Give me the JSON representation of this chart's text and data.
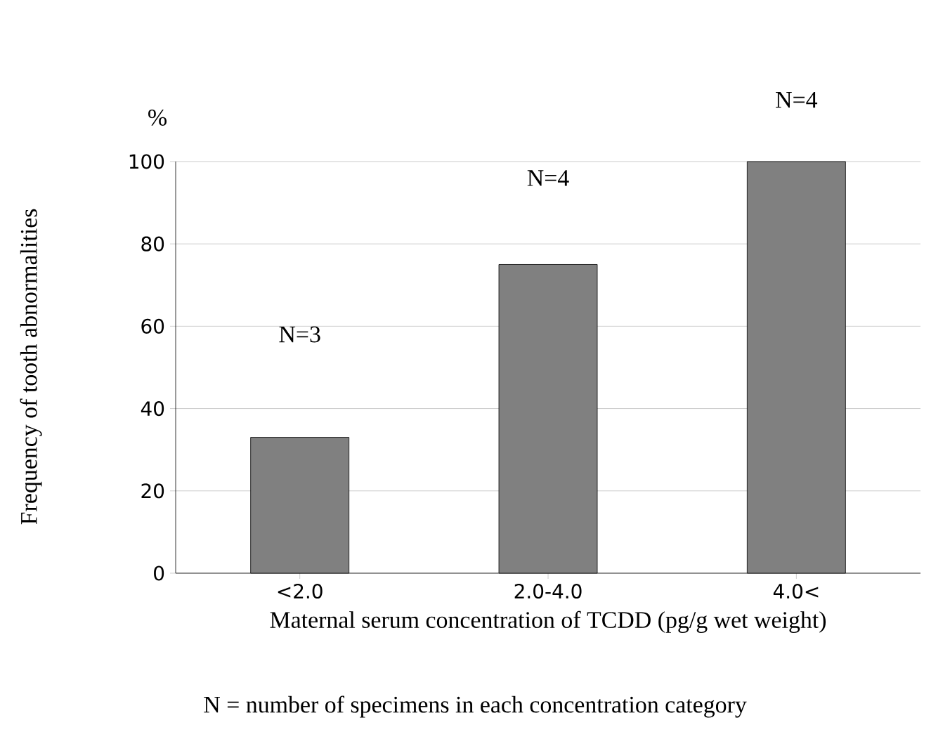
{
  "chart_data": {
    "type": "bar",
    "ylabel": "Frequency of tooth abnormalities",
    "xlabel": "Maternal serum concentration of TCDD (pg/g wet weight)",
    "categories": [
      "<2.0",
      "2.0-4.0",
      "4.0<"
    ],
    "values": [
      33,
      75,
      100
    ],
    "color": "#808080",
    "ylim": [
      0,
      100
    ],
    "yticks": [
      0,
      20,
      40,
      60,
      80,
      100
    ],
    "grid": "y",
    "annotations": [
      "%",
      "N=3",
      "N=4",
      "N=4",
      "N = number of specimens in each concentration category"
    ]
  }
}
